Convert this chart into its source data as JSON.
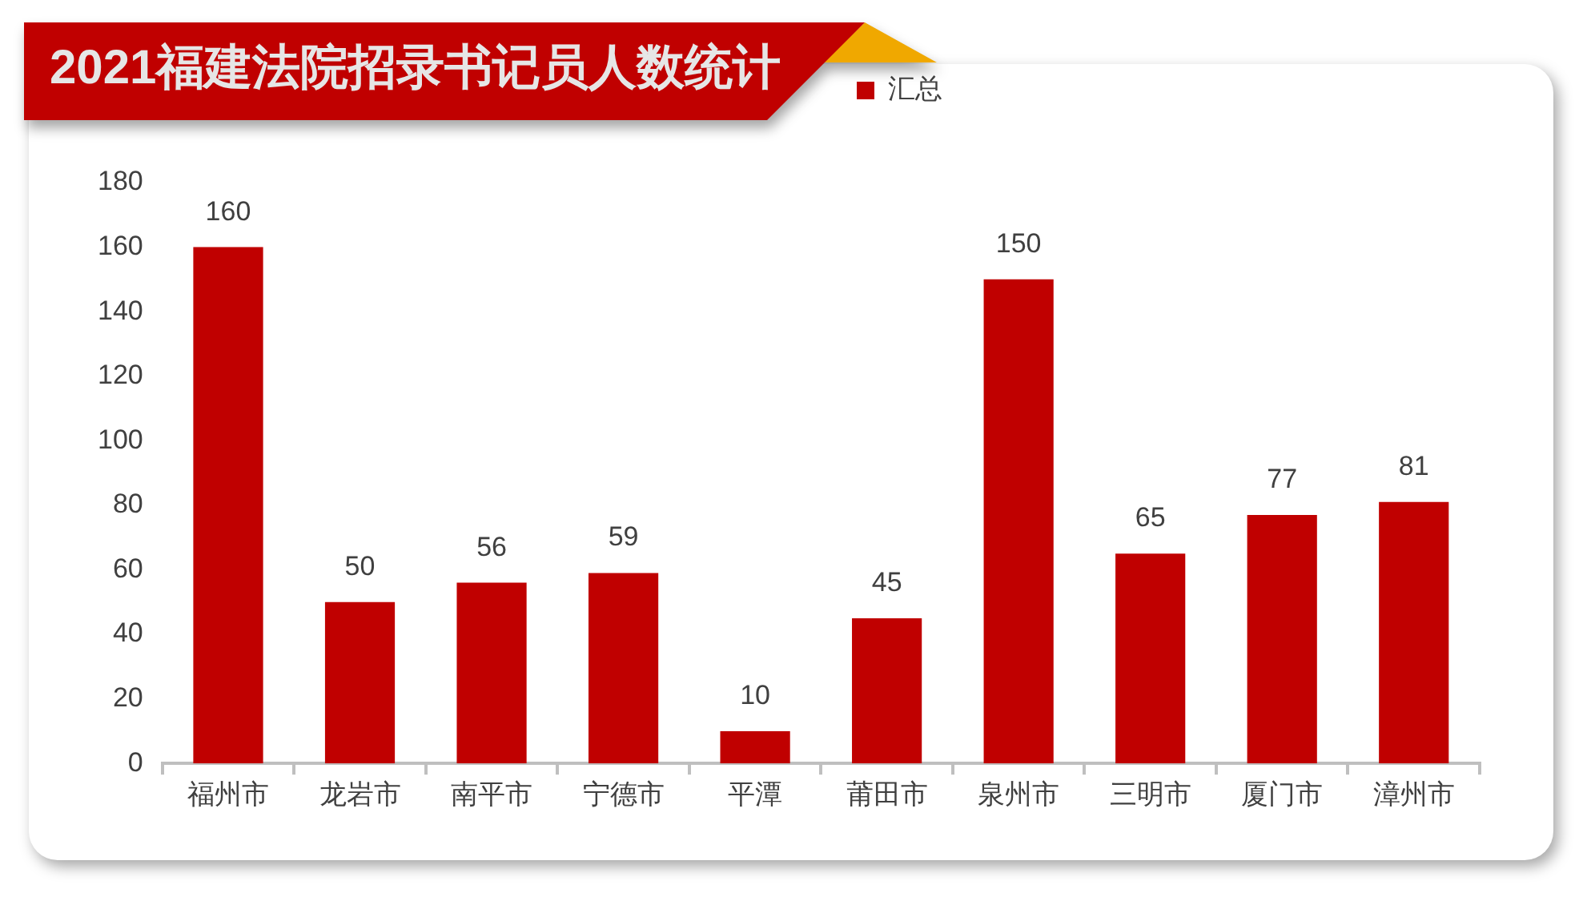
{
  "chart_data": {
    "type": "bar",
    "title": "2021福建法院招录书记员人数统计",
    "categories": [
      "福州市",
      "龙岩市",
      "南平市",
      "宁德市",
      "平潭",
      "莆田市",
      "泉州市",
      "三明市",
      "厦门市",
      "漳州市"
    ],
    "series": [
      {
        "name": "汇总",
        "color": "#c00000",
        "values": [
          160,
          50,
          56,
          59,
          10,
          45,
          150,
          65,
          77,
          81
        ]
      }
    ],
    "ylim": [
      0,
      180
    ],
    "yticks": [
      0,
      20,
      40,
      60,
      80,
      100,
      120,
      140,
      160,
      180
    ],
    "grid": false,
    "legend": "top",
    "data_labels": true
  }
}
